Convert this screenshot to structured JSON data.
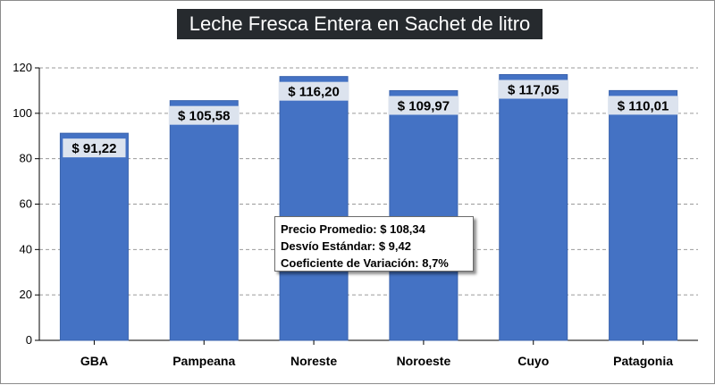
{
  "colors": {
    "bar": "#4472c4",
    "bar_edge": "#3a63ad",
    "label_bg": "#dce3ee",
    "title_bg": "#262a2e",
    "grid": "#9a9a9a"
  },
  "stats": {
    "mean_label": "Precio Promedio:",
    "mean_value": "$ 108,34",
    "std_label": "Desvío Estándar:",
    "std_value": "$ 9,42",
    "cv_label": "Coeficiente de Variación:",
    "cv_value": "8,7%"
  },
  "chart_data": {
    "type": "bar",
    "title": "Leche Fresca Entera en Sachet de litro",
    "xlabel": "",
    "ylabel": "",
    "categories": [
      "GBA",
      "Pampeana",
      "Noreste",
      "Noroeste",
      "Cuyo",
      "Patagonia"
    ],
    "values": [
      91.22,
      105.58,
      116.2,
      109.97,
      117.05,
      110.01
    ],
    "data_labels": [
      "$ 91,22",
      "$ 105,58",
      "$ 116,20",
      "$ 109,97",
      "$ 117,05",
      "$ 110,01"
    ],
    "ylim": [
      0,
      120
    ],
    "yticks": [
      0,
      20,
      40,
      60,
      80,
      100,
      120
    ],
    "grid": true,
    "legend": "none"
  }
}
